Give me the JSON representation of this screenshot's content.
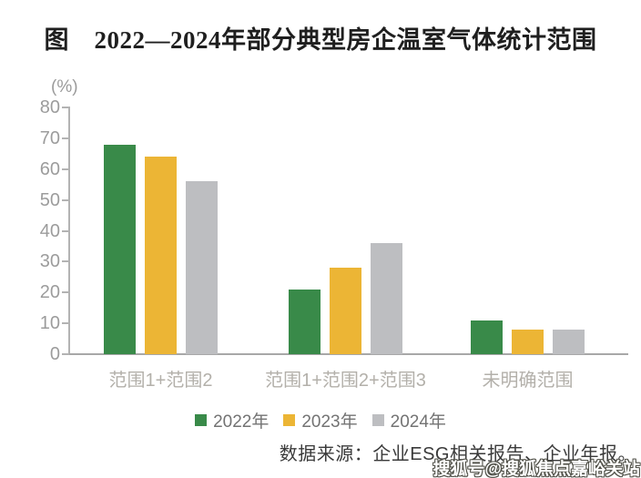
{
  "figure": {
    "title": "图　2022—2024年部分典型房企温室气体统计范围",
    "unit_label": "(%)",
    "source_note": "数据来源：企业ESG相关报告、企业年报。",
    "watermark": "搜狐号@搜狐焦点嘉峪关站"
  },
  "chart_data": {
    "type": "bar",
    "title": "2022—2024年部分典型房企温室气体统计范围",
    "categories": [
      "范围1+范围2",
      "范围1+范围2+范围3",
      "未明确范围"
    ],
    "series": [
      {
        "name": "2022年",
        "color": "#398a49",
        "values": [
          68,
          21,
          11
        ]
      },
      {
        "name": "2023年",
        "color": "#ecb535",
        "values": [
          64,
          28,
          8
        ]
      },
      {
        "name": "2024年",
        "color": "#bdbec1",
        "values": [
          56,
          36,
          8
        ]
      }
    ],
    "xlabel": "",
    "ylabel": "(%)",
    "ylim": [
      0,
      80
    ],
    "yticks": [
      0,
      10,
      20,
      30,
      40,
      50,
      60,
      70,
      80
    ],
    "grid": false,
    "legend_position": "bottom",
    "axis_color": "#b3b3b3"
  }
}
